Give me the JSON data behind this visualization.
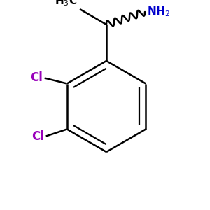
{
  "background_color": "#ffffff",
  "bond_color": "#000000",
  "cl_color": "#9900bb",
  "nh2_color": "#0000cc",
  "bond_width": 1.8,
  "figsize": [
    3.0,
    3.0
  ],
  "dpi": 100
}
